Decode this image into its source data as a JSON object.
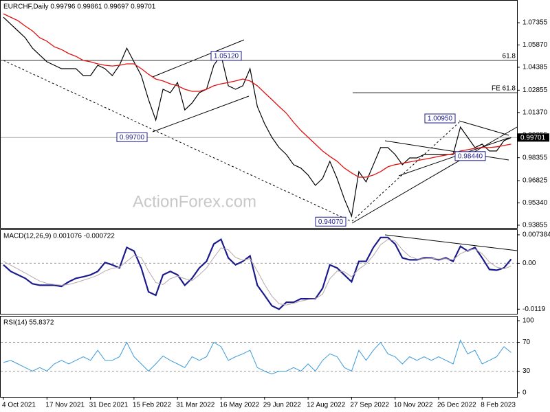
{
  "chart_data": [
    {
      "type": "line",
      "title": "EURCHF,Daily  0.99796 0.99861 0.99697 0.99701",
      "watermark": "ActionForex.com",
      "categories": [
        "4 Oct 2021",
        null,
        null,
        null,
        null,
        null,
        "17 Nov 2021",
        null,
        null,
        null,
        null,
        null,
        "31 Dec 2021",
        null,
        null,
        null,
        null,
        null,
        "15 Feb 2022",
        null,
        null,
        null,
        null,
        null,
        "31 Mar 2022",
        null,
        null,
        null,
        null,
        null,
        "16 May 2022",
        null,
        null,
        null,
        null,
        null,
        "29 Jun 2022",
        null,
        null,
        null,
        null,
        null,
        "12 Aug 2022",
        null,
        null,
        null,
        null,
        null,
        "27 Sep 2022",
        null,
        null,
        null,
        null,
        null,
        "10 Nov 2022",
        null,
        null,
        null,
        null,
        null,
        "26 Dec 2022",
        null,
        null,
        null,
        null,
        null,
        "8 Feb 2023",
        null,
        null,
        null,
        null
      ],
      "series": [
        {
          "color": "#000000",
          "values": [
            1.0772,
            1.0726,
            1.0681,
            1.0635,
            1.0566,
            1.052,
            1.0475,
            1.0452,
            1.0429,
            1.0429,
            1.0429,
            1.0383,
            1.0383,
            1.0452,
            1.0429,
            1.0383,
            1.0452,
            1.0566,
            1.0475,
            1.0383,
            1.0223,
            1.0086,
            1.0292,
            1.0269,
            1.0337,
            1.0154,
            1.02,
            1.0269,
            1.0292,
            1.0452,
            1.052,
            1.0315,
            1.0292,
            1.0315,
            1.0429,
            1.0177,
            1.0063,
            0.9972,
            0.9903,
            0.9857,
            0.9789,
            0.9766,
            0.972,
            0.9651,
            0.9697,
            0.9811,
            0.9697,
            0.956,
            0.9445,
            0.9743,
            0.9674,
            0.9789,
            0.9903,
            0.9903,
            0.9857,
            0.9789,
            0.9834,
            0.9834,
            0.9857,
            0.9857,
            0.9857,
            0.9857,
            0.9857,
            1.004,
            0.9972,
            0.9903,
            0.9926,
            0.988,
            0.988,
            0.9949,
            0.99701
          ]
        },
        {
          "color": "#e01010",
          "values": [
            1.0795,
            1.0772,
            1.0749,
            1.0713,
            1.0681,
            1.0635,
            1.0612,
            1.0575,
            1.0557,
            1.053,
            1.0511,
            1.0484,
            1.0475,
            1.0461,
            1.0452,
            1.0447,
            1.0452,
            1.0461,
            1.0461,
            1.0429,
            1.0392,
            1.036,
            1.0347,
            1.0328,
            1.0315,
            1.0292,
            1.0278,
            1.0278,
            1.0292,
            1.0315,
            1.0328,
            1.0337,
            1.0347,
            1.036,
            1.0347,
            1.0315,
            1.0269,
            1.0223,
            1.0177,
            1.0132,
            1.0072,
            1.0017,
            0.9972,
            0.9926,
            0.988,
            0.9844,
            0.9812,
            0.9766,
            0.9734,
            0.9706,
            0.9706,
            0.972,
            0.9743,
            0.9775,
            0.9789,
            0.9798,
            0.9807,
            0.9816,
            0.9825,
            0.9834,
            0.9844,
            0.9853,
            0.9862,
            0.988,
            0.9889,
            0.9898,
            0.9903,
            0.9903,
            0.9908,
            0.9917,
            0.9926
          ]
        }
      ],
      "ylim": [
        0.9367,
        1.0887
      ],
      "yticks": [
        1.07355,
        {
          "value": 1.0587,
          "label": "1.05870"
        },
        1.04385,
        1.02855,
        {
          "value": 1.0137,
          "label": "1.01370"
        },
        0.99855,
        0.98355,
        0.96825,
        {
          "value": 0.9534,
          "label": "0.95340"
        },
        0.93855
      ],
      "grid": false,
      "last": 0.99701,
      "levels": [
        {
          "value": 1.0484,
          "label": "61.8"
        },
        {
          "value": 1.0269,
          "label": "FE 61.8"
        }
      ],
      "annotations": [
        {
          "value": 1.0512,
          "label": "1.05120"
        },
        {
          "value": 0.997,
          "label": "0.99700"
        },
        {
          "value": 0.9407,
          "label": "0.94070"
        },
        {
          "value": 1.0095,
          "label": "1.00950"
        },
        {
          "value": 0.9844,
          "label": "0.98440"
        }
      ]
    },
    {
      "type": "line",
      "title": "MACD(12,26,9) 0.001076 -0.000722",
      "series": [
        {
          "color": "#1a1a8c",
          "values": [
            -0.0004,
            -0.0021,
            -0.003,
            -0.0039,
            -0.0053,
            -0.0057,
            -0.0057,
            -0.0057,
            -0.006,
            -0.0048,
            -0.0039,
            -0.0035,
            -0.003,
            -0.0021,
            0.0002,
            -0.0004,
            -0.0012,
            0.0041,
            0.0032,
            -0.0012,
            -0.0074,
            -0.0083,
            -0.003,
            -0.0021,
            -0.003,
            -0.0057,
            -0.0039,
            -0.0012,
            0.0005,
            0.005,
            0.0062,
            0.0014,
            -0.0004,
            0.0005,
            0.0019,
            -0.0057,
            -0.0083,
            -0.011,
            -0.0119,
            -0.0101,
            -0.0101,
            -0.0092,
            -0.0092,
            -0.0092,
            -0.0065,
            -0.0004,
            -0.0012,
            -0.003,
            -0.0048,
            0.0005,
            0.0005,
            0.0041,
            0.0067,
            0.0067,
            0.005,
            0.0014,
            0.0009,
            0.0009,
            0.0014,
            0.0014,
            0.0009,
            0.0014,
            0.0005,
            0.0044,
            0.0032,
            0.0041,
            0.0014,
            -0.0016,
            -0.0018,
            -0.0012,
            0.001076
          ]
        },
        {
          "color": "#b8a8a8",
          "values": [
            0.0005,
            -0.0005,
            -0.0015,
            -0.0025,
            -0.0036,
            -0.0046,
            -0.0052,
            -0.0055,
            -0.0057,
            -0.0055,
            -0.005,
            -0.0044,
            -0.0038,
            -0.0031,
            -0.002,
            -0.0013,
            -0.001,
            0.0005,
            0.002,
            0.0015,
            -0.002,
            -0.005,
            -0.0055,
            -0.004,
            -0.0033,
            -0.004,
            -0.0045,
            -0.003,
            -0.0012,
            0.0015,
            0.004,
            0.0035,
            0.0015,
            0.0008,
            0.0012,
            -0.002,
            -0.0055,
            -0.0085,
            -0.0105,
            -0.0108,
            -0.0104,
            -0.0098,
            -0.0094,
            -0.0092,
            -0.008,
            -0.004,
            -0.002,
            -0.0022,
            -0.0035,
            -0.0015,
            -0.0002,
            0.002,
            0.0048,
            0.0062,
            0.0058,
            0.0035,
            0.0018,
            0.0011,
            0.0012,
            0.0013,
            0.0011,
            0.0012,
            0.0009,
            0.0025,
            0.0033,
            0.0037,
            0.0025,
            0.0003,
            -0.001,
            -0.0014,
            -0.000722
          ]
        }
      ],
      "ylim": [
        -0.0131,
        0.0088
      ],
      "yticks": [
        0.007384,
        {
          "value": 0,
          "label": "0.00"
        },
        -0.0119
      ],
      "grid": true
    },
    {
      "type": "line",
      "title": "RSI(14) 55.8372",
      "series": [
        {
          "color": "#3a9ad9",
          "values": [
            42,
            45,
            40,
            35,
            30,
            35,
            30,
            40,
            45,
            40,
            45,
            50,
            45,
            59,
            45,
            45,
            50,
            70,
            50,
            40,
            30,
            40,
            51,
            45,
            40,
            35,
            50,
            45,
            50,
            70,
            64,
            45,
            50,
            54,
            59,
            35,
            30,
            26,
            30,
            30,
            35,
            30,
            40,
            30,
            45,
            54,
            50,
            35,
            30,
            59,
            45,
            59,
            70,
            54,
            50,
            40,
            50,
            45,
            50,
            45,
            50,
            45,
            40,
            73,
            54,
            59,
            40,
            45,
            50,
            64,
            55.8372
          ]
        }
      ],
      "ylim": [
        -5.7,
        106.7
      ],
      "yticks": [
        100,
        70,
        30,
        0
      ],
      "grid": true
    }
  ]
}
